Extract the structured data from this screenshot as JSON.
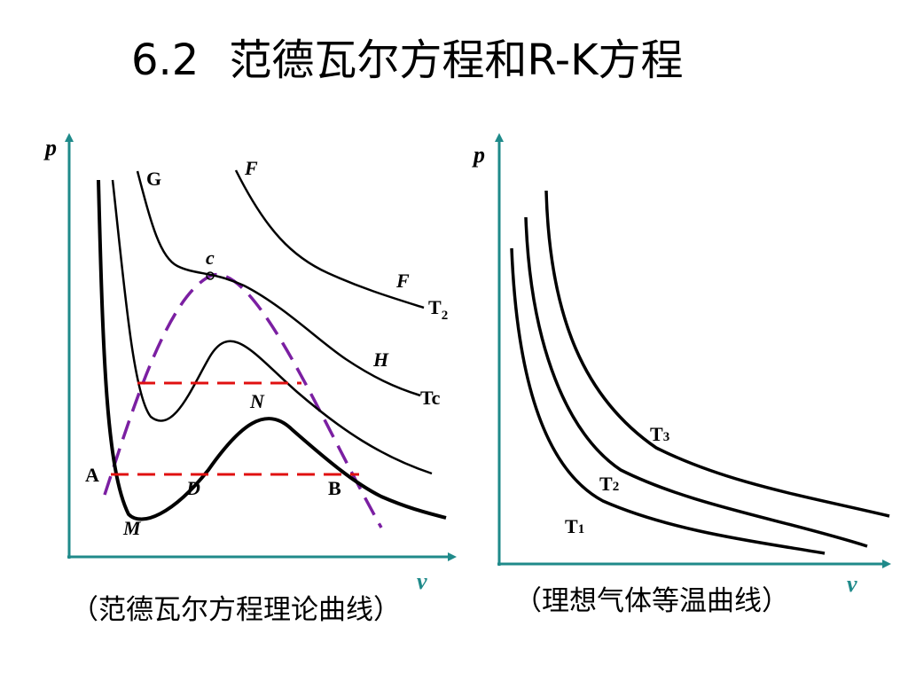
{
  "title": {
    "number": "6.2",
    "text": "范德瓦尔方程和R-K方程"
  },
  "colors": {
    "axis": "#1f8a8a",
    "curve": "#000000",
    "dashed_red": "#e01010",
    "dashed_purple": "#7b1fa2"
  },
  "left_diagram": {
    "y_axis_label": "p",
    "x_axis_label": "v",
    "point_labels": {
      "G": "G",
      "F_top": "F",
      "c": "c",
      "F_right": "F",
      "T2": "T",
      "T2_sub": "2",
      "H": "H",
      "Tc": "Tc",
      "N": "N",
      "A": "A",
      "D": "D",
      "B": "B",
      "M": "M"
    },
    "caption": "（范德瓦尔方程理论曲线）"
  },
  "right_diagram": {
    "y_axis_label": "p",
    "x_axis_label": "v",
    "curve_labels": [
      {
        "letter": "T",
        "sub": "3"
      },
      {
        "letter": "T",
        "sub": "2"
      },
      {
        "letter": "T",
        "sub": "1"
      }
    ],
    "caption": "（理想气体等温曲线）"
  }
}
